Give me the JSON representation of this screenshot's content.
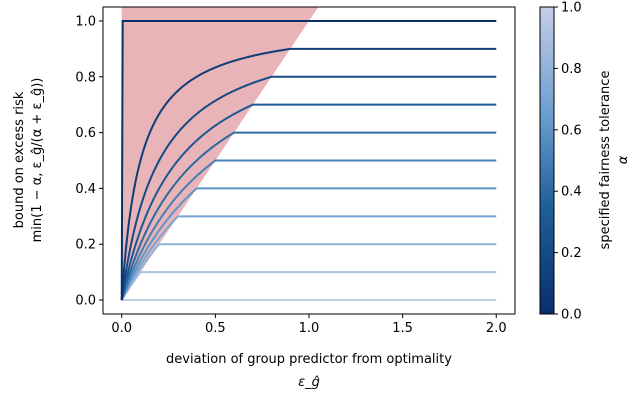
{
  "chart_data": {
    "type": "line",
    "xlabel": "deviation of group predictor from optimality",
    "xlabel_symbol": "ε_ĝ",
    "ylabel_line1": "bound on excess risk",
    "ylabel_line2": "min(1 − α, ε_ĝ/(α + ε_ĝ))",
    "colorbar_label_line1": "specified fairness tolerance",
    "colorbar_label_line2": "α",
    "xlim": [
      -0.1,
      2.1
    ],
    "ylim": [
      -0.05,
      1.05
    ],
    "x_ticks": [
      "0.0",
      "0.5",
      "1.0",
      "1.5",
      "2.0"
    ],
    "y_ticks": [
      "0.0",
      "0.2",
      "0.4",
      "0.6",
      "0.8",
      "1.0"
    ],
    "colorbar_ticks": [
      "0.0",
      "0.2",
      "0.4",
      "0.6",
      "0.8",
      "1.0"
    ],
    "alphas": [
      0.0,
      0.1,
      0.2,
      0.3,
      0.4,
      0.5,
      0.6,
      0.7,
      0.8,
      0.9,
      1.0
    ],
    "x_range": [
      0,
      2
    ],
    "shaded_region": {
      "description_color": "#e8b4b8",
      "boundary": "y = x"
    },
    "colormap": {
      "low": "#08306b",
      "high": "#c6cde8"
    }
  }
}
